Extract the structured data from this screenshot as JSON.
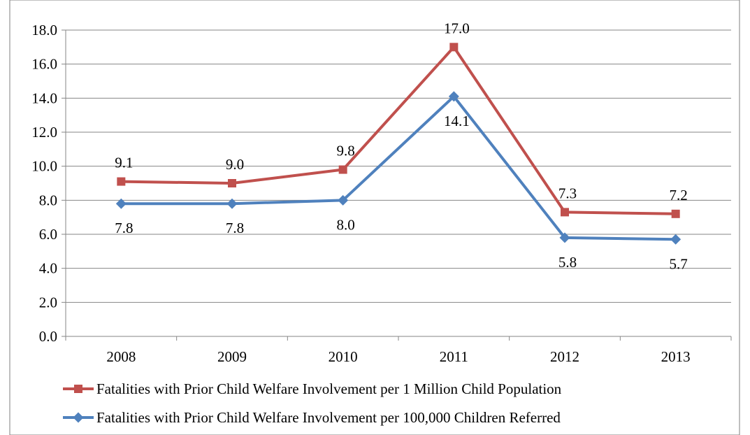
{
  "chart_data": {
    "type": "line",
    "title": "",
    "xlabel": "",
    "ylabel": "",
    "categories": [
      "2008",
      "2009",
      "2010",
      "2011",
      "2012",
      "2013"
    ],
    "ylim": [
      0,
      18
    ],
    "yticks": [
      0,
      2,
      4,
      6,
      8,
      10,
      12,
      14,
      16,
      18
    ],
    "ytick_labels": [
      "0.0",
      "2.0",
      "4.0",
      "6.0",
      "8.0",
      "10.0",
      "12.0",
      "14.0",
      "16.0",
      "18.0"
    ],
    "grid": true,
    "legend_position": "bottom",
    "series": [
      {
        "name": "Fatalities with Prior Child Welfare Involvement per 1 Million Child Population",
        "values": [
          9.1,
          9.0,
          9.8,
          17.0,
          7.3,
          7.2
        ],
        "labels": [
          "9.1",
          "9.0",
          "9.8",
          "17.0",
          "7.3",
          "7.2"
        ],
        "color": "#C0504D",
        "marker": "square",
        "label_position": "above"
      },
      {
        "name": "Fatalities with Prior Child Welfare Involvement per 100,000 Children Referred",
        "values": [
          7.8,
          7.8,
          8.0,
          14.1,
          5.8,
          5.7
        ],
        "labels": [
          "7.8",
          "7.8",
          "8.0",
          "14.1",
          "5.8",
          "5.7"
        ],
        "color": "#4F81BD",
        "marker": "diamond",
        "label_position": "below"
      }
    ]
  }
}
